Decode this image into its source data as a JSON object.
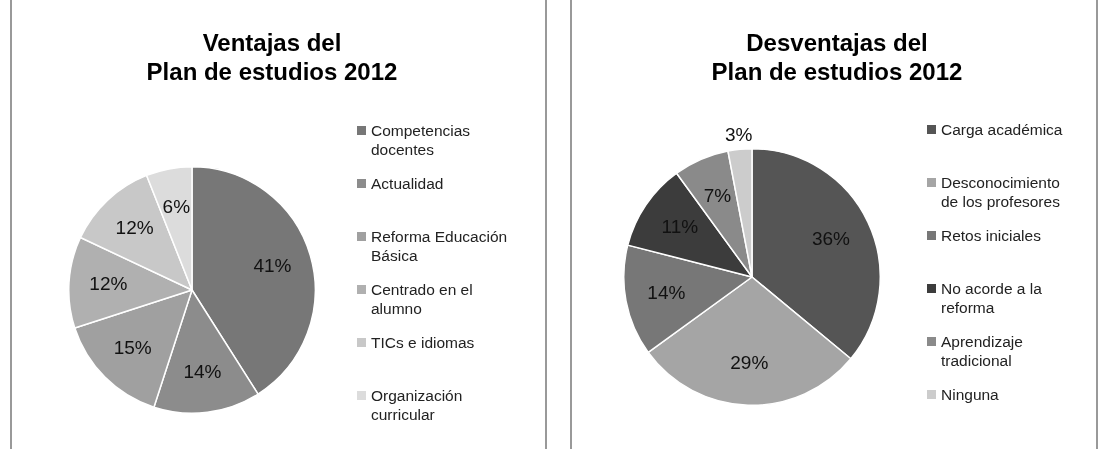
{
  "chart_data": [
    {
      "type": "pie",
      "title": "Ventajas del\nPlan de estudios 2012",
      "categories": [
        "Competencias docentes",
        "Actualidad",
        "Reforma Educación Básica",
        "Centrado en el alumno",
        "TICs e idiomas",
        "Organización curricular"
      ],
      "values": [
        41,
        14,
        15,
        12,
        12,
        6
      ],
      "value_labels": [
        "41%",
        "14%",
        "15%",
        "12%",
        "12%",
        "6%"
      ],
      "colors": [
        "#777777",
        "#8c8c8c",
        "#a0a0a0",
        "#b0b0b0",
        "#c8c8c8",
        "#dcdcdc"
      ],
      "legend": "right"
    },
    {
      "type": "pie",
      "title": "Desventajas del\nPlan de estudios 2012",
      "categories": [
        "Carga académica",
        "Desconocimiento de los profesores",
        "Retos iniciales",
        "No acorde a la reforma",
        "Aprendizaje tradicional",
        "Ninguna"
      ],
      "values": [
        36,
        29,
        14,
        11,
        7,
        3
      ],
      "value_labels": [
        "36%",
        "29%",
        "14%",
        "11%",
        "7%",
        "3%"
      ],
      "colors": [
        "#555555",
        "#a5a5a5",
        "#777777",
        "#3c3c3c",
        "#8a8a8a",
        "#cccccc"
      ],
      "legend": "right"
    }
  ]
}
